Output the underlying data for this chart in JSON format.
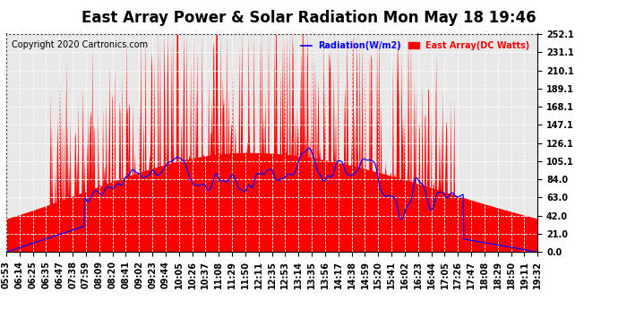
{
  "title": "East Array Power & Solar Radiation Mon May 18 19:46",
  "copyright": "Copyright 2020 Cartronics.com",
  "legend_radiation": "Radiation(W/m2)",
  "legend_array": "East Array(DC Watts)",
  "legend_radiation_color": "blue",
  "legend_array_color": "red",
  "yticks": [
    0.0,
    21.0,
    42.0,
    63.0,
    84.0,
    105.1,
    126.1,
    147.1,
    168.1,
    189.1,
    210.1,
    231.1,
    252.1
  ],
  "ymax": 252.1,
  "ymin": 0.0,
  "background_color": "#ffffff",
  "plot_bg_color": "#ffffff",
  "grid_color": "#aaaaaa",
  "xtick_labels": [
    "05:53",
    "06:14",
    "06:25",
    "06:35",
    "06:47",
    "07:38",
    "07:59",
    "08:09",
    "08:20",
    "08:41",
    "09:02",
    "09:23",
    "09:44",
    "10:05",
    "10:26",
    "10:37",
    "11:08",
    "11:29",
    "11:50",
    "12:11",
    "12:35",
    "12:53",
    "13:14",
    "13:35",
    "13:56",
    "14:17",
    "14:38",
    "14:59",
    "15:20",
    "15:41",
    "16:02",
    "16:23",
    "16:44",
    "17:05",
    "17:26",
    "17:47",
    "18:08",
    "18:29",
    "18:50",
    "19:11",
    "19:32"
  ],
  "fill_color": "red",
  "line_color": "blue",
  "title_fontsize": 12,
  "copyright_fontsize": 7,
  "tick_fontsize": 7
}
